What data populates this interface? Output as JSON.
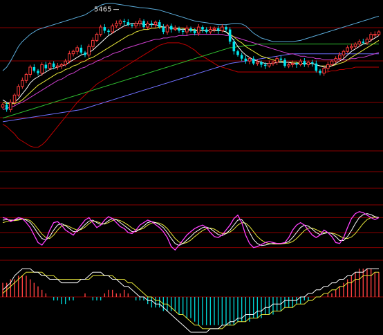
{
  "chart_data": {
    "type": "candlestick",
    "panels": [
      "price",
      "stochastic",
      "macd"
    ],
    "colors": {
      "background": "#000000",
      "up": "#ff3b3b",
      "down": "#00e5ee",
      "ma_short": "#ffffff",
      "ma_mid": "#e8e83a",
      "ma_long1": "#d040d0",
      "ma_long2": "#30c030",
      "ma_long3": "#7070ff",
      "boll_upper": "#5aaad8",
      "boll_lower": "#c00000",
      "gridline": "#8b0000",
      "osc_k": "#ff40ff",
      "osc_d": "#ffffff",
      "osc_j": "#e8e83a",
      "macd_pos": "#ff4040",
      "macd_neg": "#00d0d0"
    },
    "price": {
      "ylim": [
        4300,
        5520
      ],
      "peak_label": "5465",
      "peak_index": 30,
      "close": [
        4680,
        4640,
        4700,
        4760,
        4830,
        4880,
        4930,
        4990,
        4960,
        4940,
        5010,
        4980,
        5020,
        4990,
        5000,
        5010,
        5040,
        5100,
        5120,
        5150,
        5110,
        5090,
        5160,
        5210,
        5260,
        5320,
        5290,
        5280,
        5330,
        5350,
        5370,
        5360,
        5340,
        5330,
        5350,
        5370,
        5320,
        5350,
        5340,
        5360,
        5320,
        5280,
        5330,
        5300,
        5310,
        5290,
        5280,
        5310,
        5290,
        5270,
        5320,
        5300,
        5280,
        5300,
        5310,
        5290,
        5320,
        5300,
        5200,
        5120,
        5090,
        5060,
        5040,
        5060,
        5020,
        5030,
        5010,
        5000,
        5020,
        5030,
        5060,
        5050,
        5000,
        5010,
        5020,
        5010,
        5040,
        5010,
        5030,
        5020,
        4960,
        4940,
        4980,
        5010,
        5040,
        5060,
        5090,
        5120,
        5150,
        5160,
        5180,
        5200,
        5190,
        5220,
        5260,
        5260,
        5280
      ],
      "ma_short": [
        4720,
        4700,
        4690,
        4700,
        4730,
        4770,
        4810,
        4860,
        4890,
        4910,
        4930,
        4950,
        4970,
        4980,
        4990,
        5000,
        5010,
        5030,
        5050,
        5070,
        5090,
        5100,
        5110,
        5130,
        5160,
        5190,
        5220,
        5250,
        5270,
        5290,
        5310,
        5330,
        5340,
        5350,
        5350,
        5350,
        5340,
        5340,
        5340,
        5340,
        5330,
        5320,
        5320,
        5310,
        5310,
        5300,
        5300,
        5300,
        5290,
        5290,
        5290,
        5290,
        5290,
        5290,
        5290,
        5290,
        5290,
        5280,
        5250,
        5210,
        5160,
        5120,
        5090,
        5070,
        5050,
        5040,
        5030,
        5020,
        5020,
        5020,
        5030,
        5030,
        5030,
        5030,
        5020,
        5020,
        5020,
        5020,
        5020,
        5020,
        5010,
        5000,
        4990,
        4990,
        5000,
        5020,
        5040,
        5060,
        5090,
        5120,
        5140,
        5160,
        5180,
        5190,
        5210,
        5230,
        5250
      ],
      "ma_mid": [
        4700,
        4690,
        4690,
        4690,
        4700,
        4720,
        4750,
        4780,
        4810,
        4840,
        4860,
        4880,
        4900,
        4920,
        4940,
        4950,
        4970,
        4980,
        5000,
        5010,
        5030,
        5040,
        5060,
        5070,
        5090,
        5110,
        5130,
        5150,
        5170,
        5190,
        5210,
        5230,
        5250,
        5260,
        5280,
        5290,
        5300,
        5300,
        5310,
        5310,
        5320,
        5320,
        5320,
        5310,
        5310,
        5310,
        5310,
        5300,
        5300,
        5300,
        5290,
        5290,
        5290,
        5290,
        5290,
        5290,
        5290,
        5280,
        5260,
        5240,
        5210,
        5190,
        5160,
        5140,
        5120,
        5100,
        5080,
        5070,
        5060,
        5050,
        5040,
        5040,
        5030,
        5030,
        5030,
        5030,
        5020,
        5020,
        5020,
        5020,
        5010,
        5000,
        5000,
        5000,
        5000,
        5010,
        5020,
        5030,
        5050,
        5070,
        5090,
        5110,
        5130,
        5150,
        5170,
        5190,
        5210
      ],
      "ma_long1": [
        4640,
        4650,
        4660,
        4670,
        4690,
        4700,
        4720,
        4740,
        4760,
        4780,
        4800,
        4820,
        4840,
        4860,
        4880,
        4890,
        4910,
        4930,
        4940,
        4960,
        4980,
        4990,
        5010,
        5020,
        5040,
        5050,
        5070,
        5080,
        5100,
        5110,
        5120,
        5140,
        5150,
        5160,
        5170,
        5180,
        5190,
        5200,
        5210,
        5220,
        5220,
        5230,
        5230,
        5240,
        5240,
        5250,
        5250,
        5250,
        5260,
        5260,
        5260,
        5260,
        5260,
        5260,
        5260,
        5260,
        5260,
        5250,
        5250,
        5240,
        5230,
        5220,
        5210,
        5200,
        5190,
        5180,
        5170,
        5160,
        5150,
        5140,
        5130,
        5120,
        5110,
        5100,
        5100,
        5090,
        5080,
        5080,
        5070,
        5070,
        5060,
        5060,
        5050,
        5050,
        5050,
        5050,
        5050,
        5050,
        5050,
        5060,
        5060,
        5070,
        5070,
        5080,
        5090,
        5100,
        5110
      ],
      "ma_long2": [
        4570,
        4580,
        4590,
        4600,
        4610,
        4620,
        4630,
        4640,
        4650,
        4660,
        4670,
        4680,
        4690,
        4700,
        4710,
        4720,
        4730,
        4740,
        4750,
        4760,
        4770,
        4780,
        4790,
        4800,
        4810,
        4820,
        4830,
        4840,
        4850,
        4860,
        4870,
        4880,
        4890,
        4900,
        4910,
        4920,
        4930,
        4940,
        4950,
        4960,
        4970,
        4980,
        4990,
        5000,
        5010,
        5020,
        5030,
        5040,
        5050,
        5060,
        5070,
        5080,
        5090,
        5100,
        5110,
        5120,
        5130,
        5140,
        5150,
        5150,
        5160,
        5160,
        5170,
        5170,
        5170,
        5180,
        5180,
        5180,
        5180,
        5180,
        5180,
        5180,
        5180,
        5180,
        5180,
        5180,
        5180,
        5180,
        5180,
        5180,
        5180,
        5180,
        5180,
        5180,
        5180,
        5180,
        5180,
        5180,
        5180,
        5180,
        5180,
        5180,
        5180,
        5180,
        5180,
        5180,
        5180
      ],
      "ma_long3": [
        4540,
        4545,
        4550,
        4555,
        4560,
        4565,
        4570,
        4575,
        4580,
        4585,
        4590,
        4595,
        4600,
        4605,
        4610,
        4615,
        4620,
        4625,
        4630,
        4635,
        4640,
        4650,
        4660,
        4670,
        4680,
        4690,
        4700,
        4710,
        4720,
        4730,
        4740,
        4750,
        4760,
        4770,
        4780,
        4790,
        4800,
        4810,
        4820,
        4830,
        4840,
        4850,
        4860,
        4870,
        4880,
        4890,
        4900,
        4910,
        4920,
        4930,
        4940,
        4950,
        4960,
        4970,
        4980,
        4990,
        5000,
        5010,
        5020,
        5025,
        5030,
        5035,
        5040,
        5045,
        5050,
        5055,
        5060,
        5065,
        5070,
        5075,
        5080,
        5085,
        5090,
        5095,
        5100,
        5100,
        5100,
        5100,
        5100,
        5100,
        5100,
        5100,
        5100,
        5100,
        5100,
        5100,
        5100,
        5100,
        5100,
        5100,
        5100,
        5100,
        5100,
        5100,
        5100,
        5100,
        5100
      ],
      "boll_upper": [
        4960,
        4990,
        5040,
        5100,
        5160,
        5200,
        5230,
        5260,
        5280,
        5300,
        5310,
        5320,
        5330,
        5340,
        5350,
        5360,
        5370,
        5380,
        5390,
        5400,
        5410,
        5420,
        5440,
        5460,
        5480,
        5500,
        5510,
        5515,
        5515,
        5510,
        5505,
        5500,
        5495,
        5490,
        5485,
        5480,
        5478,
        5475,
        5470,
        5465,
        5460,
        5450,
        5440,
        5430,
        5420,
        5410,
        5400,
        5390,
        5380,
        5370,
        5365,
        5360,
        5355,
        5350,
        5345,
        5340,
        5340,
        5340,
        5345,
        5350,
        5350,
        5345,
        5330,
        5300,
        5270,
        5250,
        5230,
        5220,
        5210,
        5200,
        5200,
        5200,
        5200,
        5200,
        5200,
        5205,
        5210,
        5220,
        5230,
        5240,
        5250,
        5260,
        5270,
        5280,
        5290,
        5300,
        5310,
        5320,
        5330,
        5340,
        5350,
        5360,
        5370,
        5380,
        5390,
        5400,
        5410
      ],
      "boll_lower": [
        4520,
        4500,
        4470,
        4440,
        4400,
        4380,
        4360,
        4340,
        4330,
        4330,
        4350,
        4380,
        4420,
        4460,
        4500,
        4540,
        4580,
        4620,
        4660,
        4700,
        4730,
        4760,
        4790,
        4820,
        4850,
        4870,
        4890,
        4910,
        4930,
        4950,
        4970,
        4990,
        5010,
        5030,
        5050,
        5070,
        5090,
        5110,
        5130,
        5150,
        5170,
        5180,
        5190,
        5190,
        5190,
        5190,
        5180,
        5170,
        5150,
        5130,
        5100,
        5080,
        5060,
        5040,
        5020,
        5000,
        4990,
        4980,
        4970,
        4960,
        4950,
        4950,
        4950,
        4950,
        4950,
        4950,
        4950,
        4950,
        4950,
        4950,
        4950,
        4950,
        4950,
        4950,
        4950,
        4950,
        4950,
        4950,
        4950,
        4950,
        4950,
        4950,
        4950,
        4950,
        4960,
        4960,
        4970,
        4970,
        4980,
        4980,
        4990,
        4990,
        4990,
        4990,
        4990,
        4990,
        4990
      ]
    },
    "stochastic": {
      "ylim": [
        0,
        100
      ],
      "k": [
        80,
        78,
        72,
        76,
        80,
        78,
        70,
        60,
        45,
        30,
        25,
        35,
        55,
        70,
        72,
        65,
        55,
        50,
        45,
        55,
        65,
        75,
        80,
        70,
        60,
        65,
        75,
        82,
        78,
        70,
        62,
        58,
        50,
        48,
        55,
        65,
        70,
        75,
        72,
        66,
        60,
        52,
        40,
        22,
        15,
        25,
        35,
        45,
        52,
        58,
        62,
        65,
        60,
        50,
        42,
        40,
        45,
        55,
        65,
        78,
        85,
        70,
        45,
        28,
        20,
        22,
        26,
        30,
        32,
        30,
        28,
        28,
        30,
        40,
        55,
        65,
        70,
        65,
        55,
        45,
        40,
        45,
        55,
        50,
        42,
        30,
        28,
        40,
        60,
        78,
        88,
        92,
        90,
        85,
        80,
        76,
        80
      ],
      "d": [
        75,
        76,
        75,
        75,
        77,
        78,
        75,
        70,
        60,
        48,
        38,
        35,
        42,
        55,
        65,
        68,
        64,
        58,
        52,
        52,
        58,
        66,
        73,
        75,
        70,
        66,
        68,
        74,
        78,
        76,
        70,
        64,
        58,
        52,
        52,
        57,
        63,
        70,
        72,
        70,
        66,
        60,
        50,
        38,
        28,
        24,
        28,
        35,
        42,
        50,
        55,
        60,
        61,
        58,
        52,
        46,
        44,
        48,
        55,
        65,
        75,
        76,
        66,
        50,
        36,
        28,
        24,
        25,
        27,
        28,
        28,
        28,
        29,
        32,
        40,
        50,
        60,
        65,
        63,
        57,
        50,
        46,
        48,
        50,
        48,
        42,
        34,
        34,
        42,
        54,
        68,
        80,
        86,
        88,
        86,
        82,
        80
      ],
      "j": [
        70,
        72,
        74,
        74,
        75,
        77,
        77,
        74,
        67,
        57,
        47,
        40,
        38,
        45,
        55,
        63,
        65,
        62,
        58,
        55,
        56,
        61,
        68,
        73,
        72,
        69,
        67,
        70,
        74,
        76,
        74,
        70,
        65,
        59,
        55,
        56,
        59,
        65,
        69,
        70,
        69,
        65,
        58,
        48,
        38,
        31,
        28,
        30,
        35,
        42,
        48,
        54,
        58,
        59,
        57,
        52,
        48,
        48,
        51,
        57,
        65,
        70,
        69,
        62,
        52,
        42,
        35,
        30,
        28,
        27,
        27,
        27,
        28,
        29,
        32,
        38,
        46,
        54,
        59,
        59,
        56,
        52,
        50,
        50,
        49,
        47,
        43,
        39,
        38,
        41,
        48,
        58,
        68,
        76,
        80,
        81,
        80
      ]
    },
    "macd": {
      "ylim": [
        -10,
        10
      ],
      "hist": [
        4,
        4,
        5,
        5,
        6,
        6,
        6,
        5,
        4,
        3,
        2,
        1,
        0,
        -1,
        -1,
        -2,
        -2,
        -1,
        -1,
        0,
        0,
        1,
        0,
        -1,
        -1,
        -1,
        1,
        2,
        2,
        1,
        1,
        2,
        1,
        0,
        -1,
        -1,
        -1,
        -2,
        -3,
        -3,
        -3,
        -4,
        -4,
        -4,
        -4,
        -5,
        -5,
        -6,
        -6,
        -7,
        -8,
        -8,
        -8,
        -8,
        -8,
        -8,
        -8,
        -8,
        -8,
        -8,
        -7,
        -7,
        -7,
        -7,
        -6,
        -6,
        -6,
        -5,
        -5,
        -5,
        -4,
        -4,
        -3,
        -3,
        -3,
        -2,
        -2,
        -1,
        -1,
        0,
        0,
        0,
        0,
        1,
        1,
        2,
        3,
        4,
        5,
        6,
        7,
        8,
        8,
        8,
        8,
        7,
        7
      ],
      "dif": [
        2,
        3,
        4,
        6,
        7,
        8,
        8,
        8,
        7,
        7,
        6,
        6,
        5,
        5,
        5,
        4,
        4,
        4,
        4,
        4,
        5,
        5,
        6,
        7,
        7,
        7,
        6,
        6,
        5,
        5,
        4,
        3,
        3,
        2,
        1,
        0,
        0,
        -1,
        -1,
        -2,
        -2,
        -3,
        -4,
        -5,
        -6,
        -7,
        -8,
        -9,
        -10,
        -10,
        -10,
        -10,
        -10,
        -9,
        -9,
        -9,
        -8,
        -8,
        -7,
        -7,
        -6,
        -6,
        -5,
        -5,
        -5,
        -4,
        -4,
        -3,
        -3,
        -2,
        -2,
        -2,
        -1,
        -1,
        -1,
        -1,
        0,
        0,
        1,
        1,
        2,
        2,
        3,
        3,
        4,
        4,
        5,
        5,
        6,
        6,
        7,
        7,
        7,
        8,
        8,
        8,
        8
      ],
      "dea": [
        1,
        2,
        3,
        4,
        5,
        6,
        7,
        7,
        7,
        7,
        7,
        6,
        6,
        6,
        5,
        5,
        5,
        5,
        5,
        5,
        5,
        5,
        5,
        6,
        6,
        6,
        6,
        6,
        6,
        5,
        5,
        5,
        4,
        4,
        3,
        2,
        1,
        0,
        0,
        -1,
        -1,
        -2,
        -2,
        -3,
        -4,
        -5,
        -5,
        -6,
        -7,
        -8,
        -8,
        -9,
        -9,
        -9,
        -9,
        -9,
        -9,
        -8,
        -8,
        -8,
        -7,
        -7,
        -7,
        -6,
        -6,
        -6,
        -5,
        -5,
        -5,
        -4,
        -4,
        -4,
        -3,
        -3,
        -3,
        -2,
        -2,
        -2,
        -1,
        -1,
        0,
        0,
        1,
        1,
        2,
        2,
        3,
        3,
        4,
        4,
        5,
        5,
        6,
        6,
        6,
        7,
        7
      ]
    }
  }
}
